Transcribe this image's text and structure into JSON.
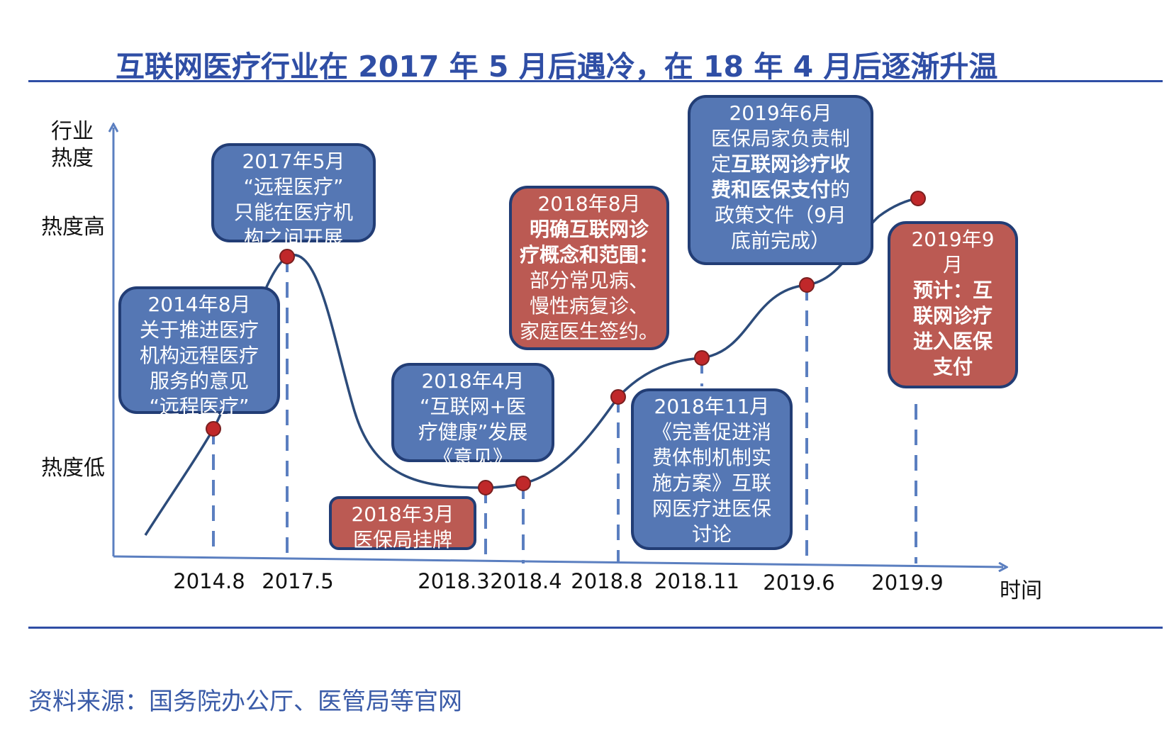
{
  "title": "互联网医疗行业在 2017 年 5 月后遇冷，在 18 年 4 月后逐渐升温",
  "source": "资料来源：国务院办公厅、医管局等官网",
  "axis": {
    "y_label_line1": "行业",
    "y_label_line2": "热度",
    "y_high": "热度高",
    "y_low": "热度低",
    "x_label": "时间"
  },
  "colors": {
    "blue_box": "#5577b4",
    "red_box": "#bb5a53",
    "curve": "#2c4b7a",
    "point": "#c0282a",
    "axis": "#5b7fc0"
  },
  "timeline": [
    {
      "tick": "2014.8"
    },
    {
      "tick": "2017.5"
    },
    {
      "tick": "2018.3"
    },
    {
      "tick": "2018.4"
    },
    {
      "tick": "2018.8"
    },
    {
      "tick": "2018.11"
    },
    {
      "tick": "2019.6"
    },
    {
      "tick": "2019.9"
    }
  ],
  "boxes": {
    "b2014": {
      "lines": [
        "2014年8月",
        "关于推进医疗",
        "机构远程医疗",
        "服务的意见",
        "“远程医疗”"
      ]
    },
    "b2017": {
      "lines": [
        "2017年5月",
        "“远程医疗”",
        "只能在医疗机",
        "构之间开展"
      ]
    },
    "b2018_3": {
      "lines": [
        "2018年3月",
        "医保局挂牌"
      ]
    },
    "b2018_4": {
      "lines": [
        "2018年4月",
        "“互联网+医",
        "疗健康”发展",
        "《意见》"
      ]
    },
    "b2018_8": {
      "date": "2018年8月",
      "bold1": "明确互联网诊",
      "bold2": "疗概念和范围：",
      "l3": "部分常见病、",
      "l4": "慢性病复诊、",
      "l5": "家庭医生签约。"
    },
    "b2018_11": {
      "lines": [
        "2018年11月",
        "《完善促进消",
        "费体制机制实",
        "施方案》互联",
        "网医疗进医保",
        "讨论"
      ]
    },
    "b2019_6": {
      "date": "2019年6月",
      "l1": "医保局家负责制",
      "l2a": "定",
      "l2b": "互联网诊疗收",
      "l3a": "费和医保支付",
      "l3b": "的",
      "l4": "政策文件（9月",
      "l5": "底前完成）"
    },
    "b2019_9": {
      "date1": "2019年9",
      "date2": "月",
      "bold1": "预计：互",
      "bold2": "联网诊疗",
      "bold3": "进入医保",
      "bold4": "支付"
    }
  }
}
